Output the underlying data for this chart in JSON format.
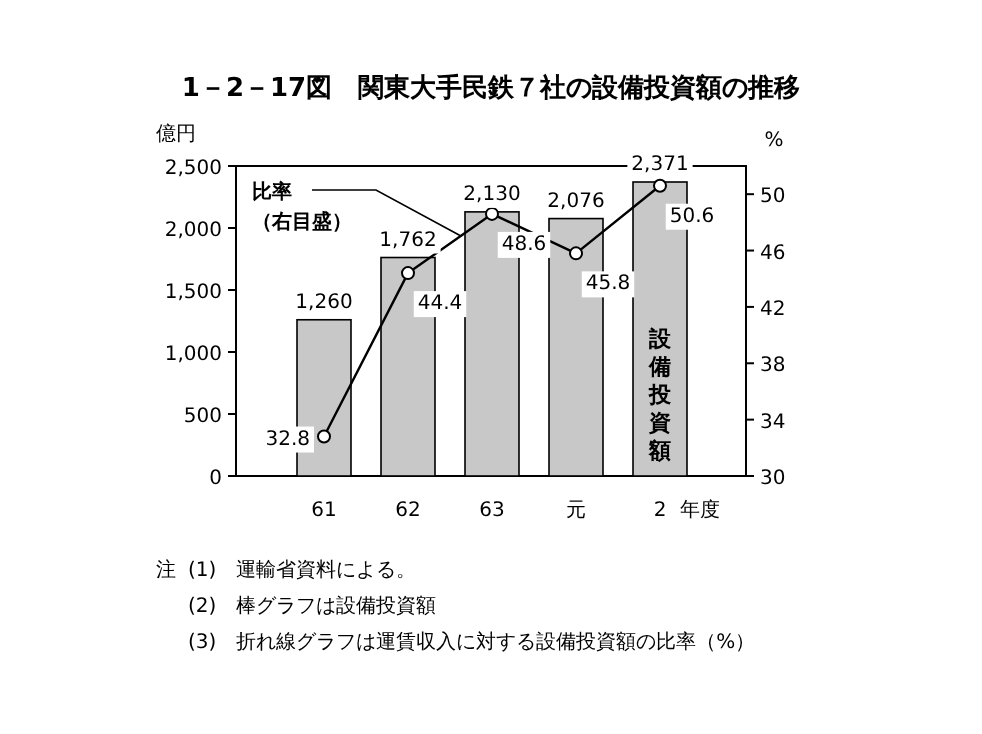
{
  "chart_data": {
    "type": "bar",
    "title": "1－2－17図　関東大手民鉄７社の設備投資額の推移",
    "ylabel": "億円",
    "y2label": "%",
    "xlabel": "年度",
    "categories": [
      "61",
      "62",
      "63",
      "元",
      "2"
    ],
    "series": [
      {
        "name": "設備投資額",
        "color": "#c8c8c8",
        "values": [
          1260,
          1762,
          2130,
          2076,
          2371
        ],
        "value_labels": [
          "1,260",
          "1,762",
          "2,130",
          "2,076",
          "2,371"
        ]
      },
      {
        "name": "比率（右目盛）",
        "type": "line",
        "axis": "y2",
        "color": "#000000",
        "marker": "circle",
        "values": [
          32.8,
          44.4,
          48.6,
          45.8,
          50.6
        ],
        "value_labels": [
          "32.8",
          "44.4",
          "48.6",
          "45.8",
          "50.6"
        ]
      }
    ],
    "ylim": [
      0,
      2500
    ],
    "yticks": [
      0,
      500,
      {
        "value": 1000,
        "label": "1,000"
      },
      {
        "value": 1500,
        "label": "1,500"
      },
      {
        "value": 2000,
        "label": "2,000"
      },
      {
        "value": 2500,
        "label": "2,500"
      }
    ],
    "y2lim": [
      30,
      52
    ],
    "y2ticks": [
      30,
      34,
      38,
      42,
      46,
      50
    ],
    "annotations": [
      "注",
      "(1)　運輸省資料による。",
      "(2)　棒グラフは設備投資額",
      "(3)　折れ線グラフは運賃収入に対する設備投資額の比率（%）"
    ]
  }
}
